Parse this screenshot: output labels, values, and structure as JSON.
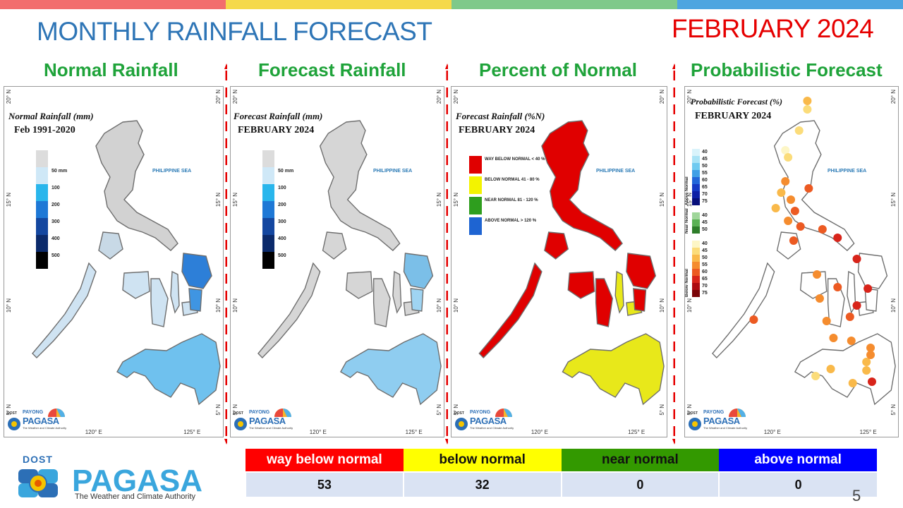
{
  "topbar_colors": [
    "#f26d6d",
    "#f5d94a",
    "#7fc98a",
    "#4ea5e0"
  ],
  "header": {
    "title": "MONTHLY RAINFALL FORECAST",
    "month": "FEBRUARY 2024",
    "title_color": "#2e75b6",
    "month_color": "#e60000"
  },
  "panels": [
    {
      "heading": "Normal Rainfall",
      "map_title": "Normal Rainfall (mm)",
      "map_subtitle": "Feb 1991-2020",
      "legend": [
        {
          "color": "#dcdcdc",
          "label": ""
        },
        {
          "color": "#cfe8f7",
          "label": "50 mm"
        },
        {
          "color": "#29b6ec",
          "label": "100"
        },
        {
          "color": "#1e78d6",
          "label": "200"
        },
        {
          "color": "#1447a0",
          "label": "300"
        },
        {
          "color": "#0b2a6b",
          "label": "400"
        },
        {
          "color": "#000000",
          "label": "500"
        }
      ]
    },
    {
      "heading": "Forecast Rainfall",
      "map_title": "Forecast Rainfall (mm)",
      "map_subtitle": "FEBRUARY 2024",
      "legend": [
        {
          "color": "#dcdcdc",
          "label": ""
        },
        {
          "color": "#cfe8f7",
          "label": "50 mm"
        },
        {
          "color": "#29b6ec",
          "label": "100"
        },
        {
          "color": "#1e78d6",
          "label": "200"
        },
        {
          "color": "#1447a0",
          "label": "300"
        },
        {
          "color": "#0b2a6b",
          "label": "400"
        },
        {
          "color": "#000000",
          "label": "500"
        }
      ]
    },
    {
      "heading": "Percent of Normal",
      "map_title": "Forecast Rainfall (%N)",
      "map_subtitle": "FEBRUARY 2024",
      "legend": [
        {
          "color": "#e00000",
          "label": "WAY BELOW NORMAL < 40 %"
        },
        {
          "color": "#f3f300",
          "label": "BELOW NORMAL 41 - 80 %"
        },
        {
          "color": "#2e9e1e",
          "label": "NEAR NORMAL 81 - 120 %"
        },
        {
          "color": "#1e64d2",
          "label": "ABOVE NORMAL > 120 %"
        }
      ]
    },
    {
      "heading": "Probabilistic Forecast",
      "map_title": "Probabilistic Forecast (%)",
      "map_subtitle": "FEBRUARY 2024",
      "legend_groups": [
        {
          "name": "Above Normal",
          "items": [
            {
              "color": "#d9f3fb",
              "label": "40"
            },
            {
              "color": "#a9e3f6",
              "label": "45"
            },
            {
              "color": "#6fcaf0",
              "label": "50"
            },
            {
              "color": "#3f9fe6",
              "label": "55"
            },
            {
              "color": "#2266d9",
              "label": "60"
            },
            {
              "color": "#1539c4",
              "label": "65"
            },
            {
              "color": "#0d1fa6",
              "label": "70"
            },
            {
              "color": "#060e7a",
              "label": "75"
            }
          ]
        },
        {
          "name": "Near Normal",
          "items": [
            {
              "color": "#9fd69a",
              "label": "40"
            },
            {
              "color": "#5bb155",
              "label": "45"
            },
            {
              "color": "#2e7d2a",
              "label": "50"
            }
          ]
        },
        {
          "name": "Below Normal",
          "items": [
            {
              "color": "#fdf6c6",
              "label": "40"
            },
            {
              "color": "#fbdc7a",
              "label": "45"
            },
            {
              "color": "#f9b94a",
              "label": "50"
            },
            {
              "color": "#f58c2e",
              "label": "55"
            },
            {
              "color": "#ec5a22",
              "label": "60"
            },
            {
              "color": "#d8241a",
              "label": "65"
            },
            {
              "color": "#ad0b10",
              "label": "70"
            },
            {
              "color": "#7a0508",
              "label": "75"
            }
          ]
        }
      ]
    }
  ],
  "map_common": {
    "sea_label": "PHILIPPINE SEA",
    "lat_labels": [
      "20° N",
      "15° N",
      "10° N",
      "5° N"
    ],
    "lon_labels": [
      "120° E",
      "125° E"
    ],
    "logo_dost": "DOST",
    "logo_payong": "PAYONG",
    "logo_pagasa": "PAGASA",
    "logo_tagline": "The Weather and Climate Authority"
  },
  "summary": {
    "categories": [
      {
        "label": "way below normal",
        "value": "53",
        "bg": "#ff0000",
        "fg": "#ffffff"
      },
      {
        "label": "below normal",
        "value": "32",
        "bg": "#ffff00",
        "fg": "#111111"
      },
      {
        "label": "near normal",
        "value": "0",
        "bg": "#339900",
        "fg": "#111111"
      },
      {
        "label": "above normal",
        "value": "0",
        "bg": "#0000ff",
        "fg": "#ffffff"
      }
    ]
  },
  "footer": {
    "dost": "DOST",
    "pagasa": "PAGASA",
    "tagline": "The Weather and Climate Authority",
    "page_number": "5"
  }
}
